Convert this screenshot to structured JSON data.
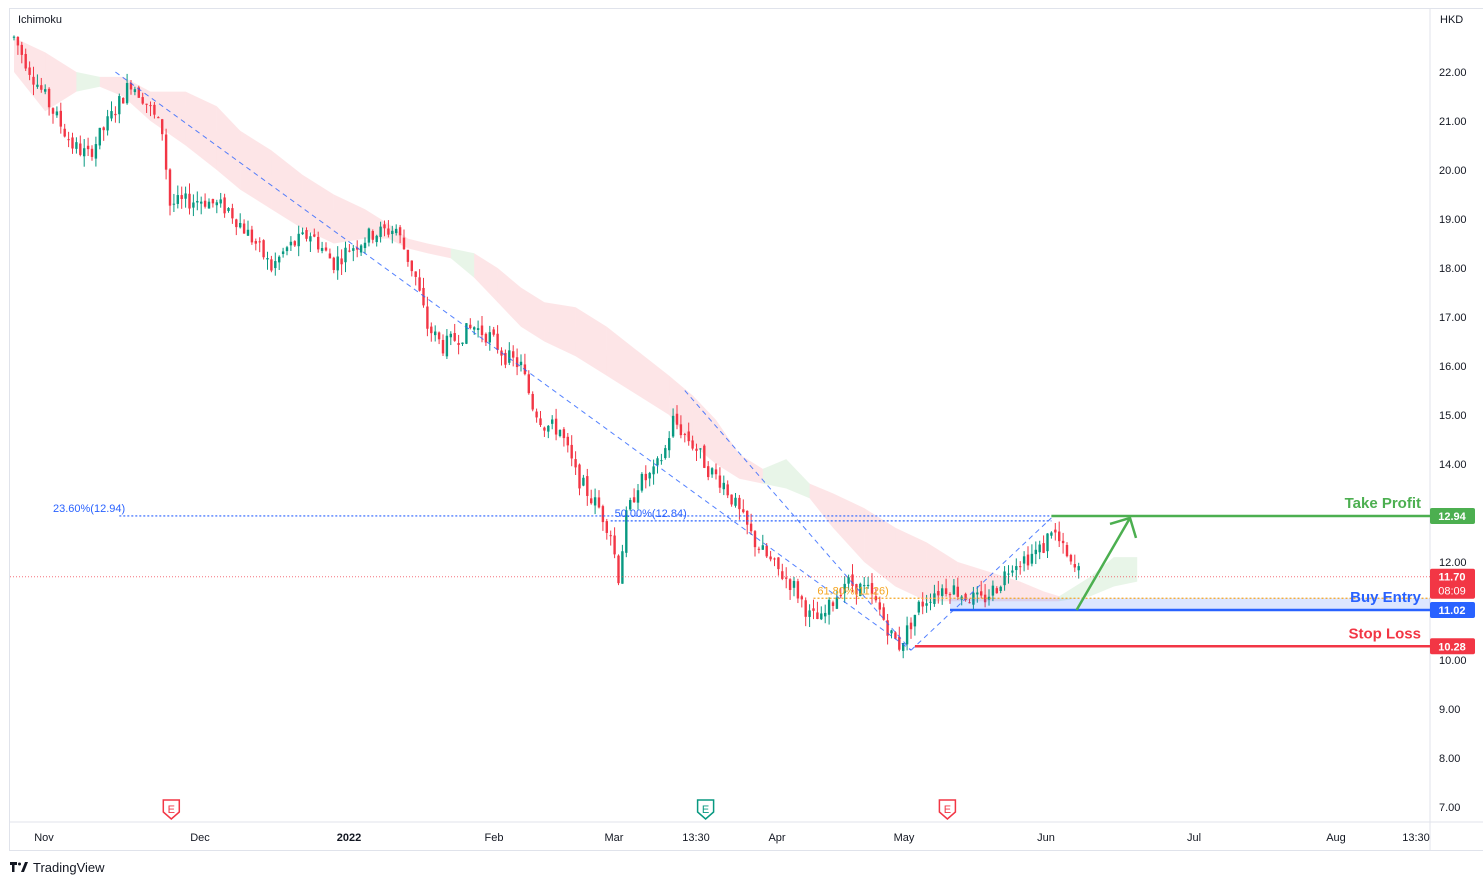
{
  "header": {
    "indicator": "Ichimoku",
    "currency": "HKD"
  },
  "brand": {
    "name": "TradingView",
    "icon": "tradingview-logo-icon"
  },
  "chart_data": {
    "type": "candlestick",
    "yaxis": {
      "range": [
        6.7,
        22.6
      ],
      "ticks": [
        "22.00",
        "21.00",
        "20.00",
        "19.00",
        "18.00",
        "17.00",
        "16.00",
        "15.00",
        "14.00",
        "12.00",
        "10.00",
        "9.00",
        "8.00",
        "7.00"
      ],
      "label": "HKD"
    },
    "xaxis": {
      "ticks": [
        {
          "label": "Nov",
          "bold": false
        },
        {
          "label": "Dec",
          "bold": false
        },
        {
          "label": "2022",
          "bold": true
        },
        {
          "label": "Feb",
          "bold": false
        },
        {
          "label": "Mar",
          "bold": false
        },
        {
          "label": "13:30",
          "bold": false
        },
        {
          "label": "Apr",
          "bold": false
        },
        {
          "label": "May",
          "bold": false
        },
        {
          "label": "Jun",
          "bold": false
        },
        {
          "label": "Jul",
          "bold": false
        },
        {
          "label": "Aug",
          "bold": false
        },
        {
          "label": "13:30",
          "bold": false
        }
      ]
    },
    "price_path": [
      [
        0,
        22.7
      ],
      [
        5,
        21.9
      ],
      [
        10,
        21.2
      ],
      [
        15,
        20.5
      ],
      [
        19,
        20.3
      ],
      [
        25,
        21.1
      ],
      [
        30,
        21.8
      ],
      [
        33,
        21.5
      ],
      [
        38,
        20.8
      ],
      [
        40,
        19.3
      ],
      [
        48,
        19.4
      ],
      [
        55,
        19.2
      ],
      [
        62,
        18.5
      ],
      [
        66,
        18.0
      ],
      [
        70,
        18.4
      ],
      [
        76,
        18.7
      ],
      [
        82,
        18.1
      ],
      [
        86,
        18.4
      ],
      [
        92,
        18.7
      ],
      [
        98,
        18.8
      ],
      [
        103,
        17.8
      ],
      [
        106,
        16.8
      ],
      [
        110,
        16.4
      ],
      [
        114,
        16.6
      ],
      [
        118,
        16.8
      ],
      [
        122,
        16.6
      ],
      [
        126,
        16.2
      ],
      [
        130,
        16.0
      ],
      [
        133,
        15.2
      ],
      [
        136,
        14.8
      ],
      [
        140,
        14.7
      ],
      [
        144,
        13.8
      ],
      [
        148,
        13.3
      ],
      [
        150,
        13.1
      ],
      [
        153,
        12.6
      ],
      [
        155,
        11.7
      ],
      [
        157,
        12.9
      ],
      [
        160,
        13.6
      ],
      [
        164,
        13.8
      ],
      [
        167,
        14.3
      ],
      [
        169,
        14.9
      ],
      [
        171,
        14.7
      ],
      [
        175,
        14.3
      ],
      [
        178,
        13.9
      ],
      [
        182,
        13.6
      ],
      [
        186,
        13.0
      ],
      [
        190,
        12.4
      ],
      [
        195,
        11.9
      ],
      [
        200,
        11.5
      ],
      [
        204,
        10.9
      ],
      [
        207,
        10.8
      ],
      [
        210,
        11.2
      ],
      [
        213,
        11.6
      ],
      [
        216,
        11.5
      ],
      [
        219,
        11.4
      ],
      [
        222,
        11.0
      ],
      [
        225,
        10.5
      ],
      [
        227,
        10.3
      ],
      [
        229,
        10.6
      ],
      [
        232,
        11.1
      ],
      [
        236,
        11.4
      ],
      [
        240,
        11.5
      ],
      [
        244,
        11.3
      ],
      [
        248,
        11.2
      ],
      [
        252,
        11.5
      ],
      [
        256,
        12.0
      ],
      [
        260,
        12.1
      ],
      [
        264,
        12.3
      ],
      [
        266,
        12.7
      ],
      [
        268,
        12.4
      ],
      [
        271,
        11.9
      ],
      [
        273,
        11.8
      ]
    ],
    "cloud": [
      [
        0,
        22.0,
        22.7,
        "red"
      ],
      [
        8,
        21.2,
        22.4,
        "red"
      ],
      [
        16,
        21.6,
        22.0,
        "green"
      ],
      [
        22,
        21.7,
        21.9,
        "red"
      ],
      [
        28,
        21.5,
        21.9,
        "red"
      ],
      [
        35,
        21.0,
        21.6,
        "red"
      ],
      [
        44,
        20.5,
        21.6,
        "red"
      ],
      [
        52,
        20.0,
        21.3,
        "red"
      ],
      [
        58,
        19.6,
        20.8,
        "red"
      ],
      [
        66,
        19.2,
        20.4,
        "red"
      ],
      [
        74,
        18.8,
        19.9,
        "red"
      ],
      [
        82,
        18.5,
        19.5,
        "red"
      ],
      [
        90,
        18.6,
        19.2,
        "red"
      ],
      [
        96,
        18.6,
        18.9,
        "red"
      ],
      [
        101,
        18.4,
        18.6,
        "red"
      ],
      [
        106,
        18.3,
        18.5,
        "red"
      ],
      [
        112,
        18.2,
        18.4,
        "green"
      ],
      [
        118,
        17.8,
        18.3,
        "red"
      ],
      [
        124,
        17.3,
        18.0,
        "red"
      ],
      [
        130,
        16.8,
        17.6,
        "red"
      ],
      [
        136,
        16.5,
        17.3,
        "red"
      ],
      [
        144,
        16.2,
        17.2,
        "red"
      ],
      [
        152,
        15.8,
        16.8,
        "red"
      ],
      [
        160,
        15.4,
        16.3,
        "red"
      ],
      [
        168,
        15.0,
        15.8,
        "red"
      ],
      [
        174,
        14.4,
        15.4,
        "red"
      ],
      [
        180,
        14.0,
        14.9,
        "red"
      ],
      [
        186,
        13.7,
        14.2,
        "red"
      ],
      [
        192,
        13.6,
        13.9,
        "green"
      ],
      [
        198,
        13.5,
        14.1,
        "green"
      ],
      [
        204,
        13.3,
        13.6,
        "red"
      ],
      [
        210,
        12.7,
        13.4,
        "red"
      ],
      [
        218,
        12.0,
        13.1,
        "red"
      ],
      [
        226,
        11.5,
        12.7,
        "red"
      ],
      [
        234,
        11.2,
        12.4,
        "red"
      ],
      [
        242,
        11.2,
        12.0,
        "red"
      ],
      [
        250,
        11.2,
        11.8,
        "red"
      ],
      [
        258,
        11.2,
        11.6,
        "red"
      ],
      [
        264,
        11.2,
        11.4,
        "red"
      ],
      [
        268,
        11.2,
        11.3,
        "green"
      ],
      [
        276,
        11.3,
        11.7,
        "green"
      ],
      [
        282,
        11.5,
        12.1,
        "green"
      ],
      [
        288,
        11.6,
        12.1,
        "green"
      ]
    ],
    "trendlines": [
      {
        "from": [
          26,
          22.0
        ],
        "to": [
          230,
          10.2
        ]
      },
      {
        "from": [
          172,
          15.5
        ],
        "to": [
          230,
          10.2
        ]
      },
      {
        "from": [
          230,
          10.2
        ],
        "to": [
          266,
          12.9
        ]
      }
    ],
    "fib_levels": [
      {
        "label": "23.60%(12.94)",
        "value": 12.94,
        "x_from": 27,
        "x_to": 266,
        "label_x": 10,
        "color": "#2962ff"
      },
      {
        "label": "50.00%(12.84)",
        "value": 12.84,
        "x_from": 153,
        "x_to": 266,
        "label_x": 154,
        "color": "#2962ff"
      },
      {
        "label": "61.80%(11.26)",
        "value": 11.26,
        "x_from": 205,
        "x_to": 290,
        "label_x": 206,
        "color": "#f5a623"
      }
    ],
    "trade_levels": [
      {
        "label": "Take Profit",
        "value": 12.94,
        "value_text": "12.94",
        "color": "#4caf50",
        "x_from": 266
      },
      {
        "label": "Buy Entry",
        "value": 11.02,
        "value_text": "11.02",
        "color": "#2962ff",
        "x_from": 240
      },
      {
        "label": "Stop Loss",
        "value": 10.28,
        "value_text": "10.28",
        "color": "#f23645",
        "x_from": 231
      }
    ],
    "current_price": {
      "value": 11.7,
      "value_text": "11.70",
      "countdown": "08:09",
      "color": "#f23645"
    },
    "projection": {
      "from": [
        274,
        11.02
      ],
      "to": [
        290,
        12.94
      ],
      "color": "#4caf50"
    },
    "earnings_markers": [
      {
        "x": 37,
        "color": "#f23645",
        "letter": "E"
      },
      {
        "x": 174,
        "color": "#089981",
        "letter": "E"
      },
      {
        "x": 236,
        "color": "#f23645",
        "letter": "E"
      }
    ]
  }
}
